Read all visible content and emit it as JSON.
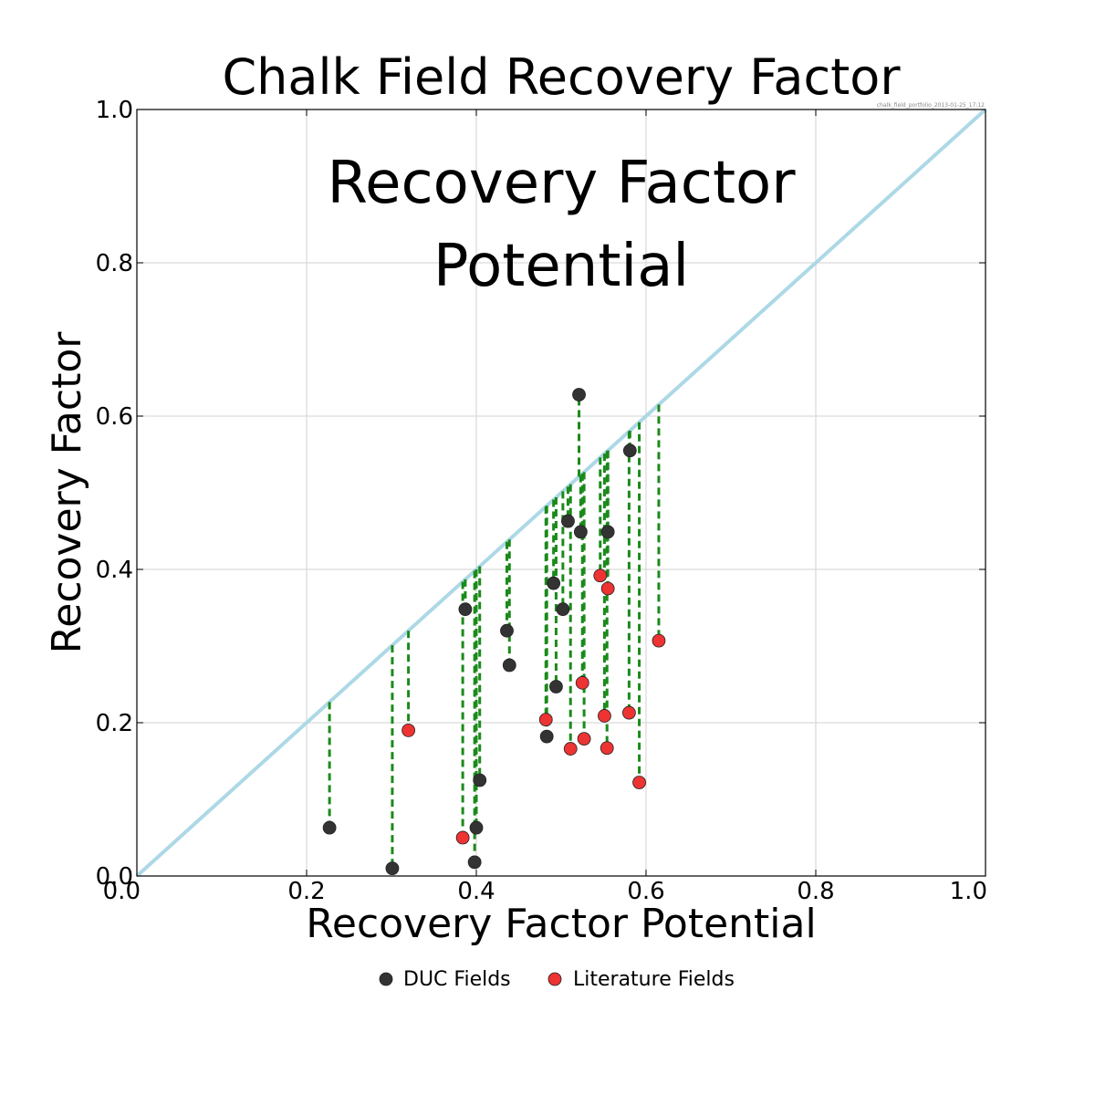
{
  "chart_data": {
    "type": "scatter",
    "title": "Chalk Field Recovery Factor",
    "annotation_lines": [
      "Recovery Factor",
      "Potential"
    ],
    "xlabel": "Recovery Factor Potential",
    "ylabel": "Recovery Factor",
    "stamp": "chalk_field_portfolio_2013-01-25_17:12",
    "xlim": [
      0.0,
      1.0
    ],
    "ylim": [
      0.0,
      1.0
    ],
    "x_ticks": [
      "0.0",
      "0.2",
      "0.4",
      "0.6",
      "0.8",
      "1.0"
    ],
    "y_ticks": [
      "0.0",
      "0.2",
      "0.4",
      "0.6",
      "0.8",
      "1.0"
    ],
    "grid": true,
    "reference_line": {
      "from": [
        0.0,
        0.0
      ],
      "to": [
        1.0,
        1.0
      ],
      "color": "#add8e6"
    },
    "drop_lines": {
      "color": "#1a8a1a",
      "style": "dashed"
    },
    "legend_position": "bottom-center",
    "series": [
      {
        "name": "DUC Fields",
        "color": "#333333",
        "points": [
          {
            "x": 0.227,
            "y": 0.063
          },
          {
            "x": 0.301,
            "y": 0.01
          },
          {
            "x": 0.387,
            "y": 0.348
          },
          {
            "x": 0.398,
            "y": 0.018
          },
          {
            "x": 0.4,
            "y": 0.063
          },
          {
            "x": 0.404,
            "y": 0.125
          },
          {
            "x": 0.436,
            "y": 0.32
          },
          {
            "x": 0.439,
            "y": 0.275
          },
          {
            "x": 0.483,
            "y": 0.182
          },
          {
            "x": 0.491,
            "y": 0.382
          },
          {
            "x": 0.494,
            "y": 0.247
          },
          {
            "x": 0.502,
            "y": 0.348
          },
          {
            "x": 0.508,
            "y": 0.463
          },
          {
            "x": 0.521,
            "y": 0.628
          },
          {
            "x": 0.523,
            "y": 0.449
          },
          {
            "x": 0.555,
            "y": 0.449
          },
          {
            "x": 0.581,
            "y": 0.555
          }
        ]
      },
      {
        "name": "Literature Fields",
        "color": "#ee3333",
        "points": [
          {
            "x": 0.32,
            "y": 0.19
          },
          {
            "x": 0.384,
            "y": 0.05
          },
          {
            "x": 0.482,
            "y": 0.204
          },
          {
            "x": 0.511,
            "y": 0.166
          },
          {
            "x": 0.525,
            "y": 0.252
          },
          {
            "x": 0.527,
            "y": 0.179
          },
          {
            "x": 0.546,
            "y": 0.392
          },
          {
            "x": 0.551,
            "y": 0.209
          },
          {
            "x": 0.554,
            "y": 0.167
          },
          {
            "x": 0.555,
            "y": 0.375
          },
          {
            "x": 0.58,
            "y": 0.213
          },
          {
            "x": 0.592,
            "y": 0.122
          },
          {
            "x": 0.615,
            "y": 0.307
          }
        ]
      }
    ]
  }
}
